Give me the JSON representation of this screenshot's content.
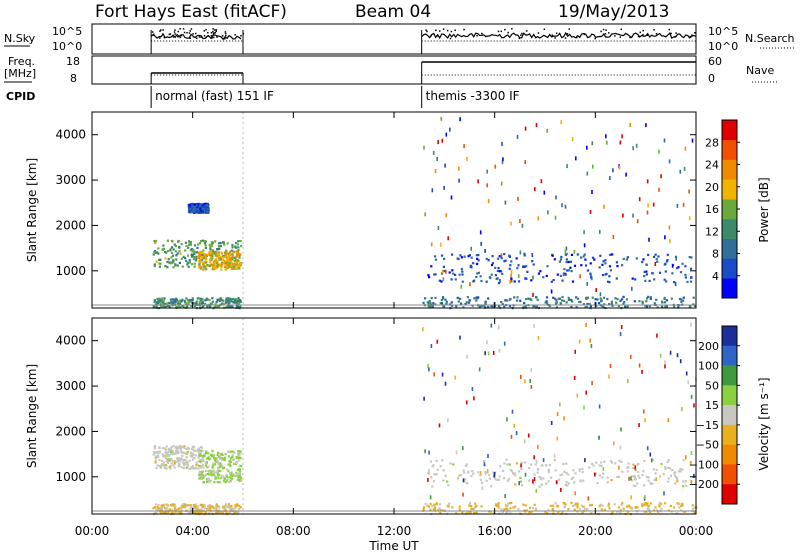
{
  "header": {
    "radar": "Fort Hays East (fitACF)",
    "beam": "Beam 04",
    "date": "19/May/2013"
  },
  "top_panels": {
    "nsky_label": "N.Sky",
    "nsky_ticks": [
      "10^5",
      "10^0"
    ],
    "nsearch_label": "N.Search",
    "nsearch_ticks": [
      "10^5",
      "10^0"
    ],
    "freq_label": "Freq.",
    "freq_unit": "[MHz]",
    "freq_ticks": [
      "18",
      "8"
    ],
    "nave_label": "Nave",
    "nave_ticks": [
      "60",
      "0"
    ],
    "cpid_label": "CPID",
    "modes": [
      {
        "label": "normal (fast) 151 IF",
        "start_hour": 2.35,
        "end_hour": 6.0
      },
      {
        "label": "themis -3300 IF",
        "start_hour": 13.1,
        "end_hour": 24.0
      }
    ]
  },
  "colors": {
    "power_scale": [
      "#0000ff",
      "#1a4bc8",
      "#2f6f9a",
      "#3c8a6a",
      "#6aaa3c",
      "#f0b400",
      "#f08a00",
      "#f05000",
      "#e00000"
    ],
    "velocity_scale": [
      "#1a2f9a",
      "#2f63c8",
      "#3c9a3c",
      "#8ad040",
      "#c8c8c0",
      "#e8b020",
      "#f08a00",
      "#f05000",
      "#e00000"
    ]
  },
  "chart_data": [
    {
      "type": "heatmap",
      "name": "power",
      "x": {
        "label": "Time UT",
        "range": [
          0,
          24
        ],
        "unit": "hour",
        "tick_labels": [
          "00:00",
          "04:00",
          "08:00",
          "12:00",
          "16:00",
          "20:00",
          "00:00"
        ]
      },
      "y": {
        "label": "Slant Range [km]",
        "range": [
          180,
          4500
        ],
        "tick_labels": [
          "1000",
          "2000",
          "3000",
          "4000"
        ]
      },
      "colorbar": {
        "label": "Power [dB]",
        "range": [
          0,
          32
        ],
        "tick_labels": [
          "4",
          "8",
          "12",
          "16",
          "20",
          "24",
          "28"
        ]
      },
      "regions": [
        {
          "t": [
            2.4,
            5.9
          ],
          "r": [
            1100,
            1700
          ],
          "level": 14
        },
        {
          "t": [
            4.2,
            5.9
          ],
          "r": [
            1050,
            1450
          ],
          "level": 20
        },
        {
          "t": [
            2.4,
            5.9
          ],
          "r": [
            200,
            420
          ],
          "level": 12
        },
        {
          "t": [
            3.8,
            4.6
          ],
          "r": [
            2300,
            2500
          ],
          "level": 6
        },
        {
          "t": [
            13.3,
            23.8
          ],
          "r": [
            750,
            1400
          ],
          "level": 6
        },
        {
          "t": [
            13.1,
            24
          ],
          "r": [
            200,
            450
          ],
          "level": 10
        }
      ]
    },
    {
      "type": "heatmap",
      "name": "velocity",
      "x": {
        "label": "Time UT",
        "range": [
          0,
          24
        ],
        "unit": "hour",
        "tick_labels": [
          "00:00",
          "04:00",
          "08:00",
          "12:00",
          "16:00",
          "20:00",
          "00:00"
        ]
      },
      "y": {
        "label": "Slant Range [km]",
        "range": [
          180,
          4500
        ],
        "tick_labels": [
          "1000",
          "2000",
          "3000",
          "4000"
        ]
      },
      "colorbar": {
        "label": "Velocity [m s⁻¹]",
        "range": [
          -250,
          250
        ],
        "tick_labels": [
          "200",
          "100",
          "50",
          "15",
          "-15",
          "-50",
          "-100",
          "-200"
        ]
      },
      "regions": [
        {
          "t": [
            2.4,
            4.4
          ],
          "r": [
            1200,
            1700
          ],
          "level": 0
        },
        {
          "t": [
            4.2,
            5.9
          ],
          "r": [
            900,
            1600
          ],
          "level": 40
        },
        {
          "t": [
            2.4,
            5.9
          ],
          "r": [
            200,
            420
          ],
          "level": -30
        },
        {
          "t": [
            13.3,
            23.8
          ],
          "r": [
            800,
            1400
          ],
          "level": 0
        },
        {
          "t": [
            13.1,
            24
          ],
          "r": [
            200,
            450
          ],
          "level": -40
        }
      ]
    }
  ]
}
